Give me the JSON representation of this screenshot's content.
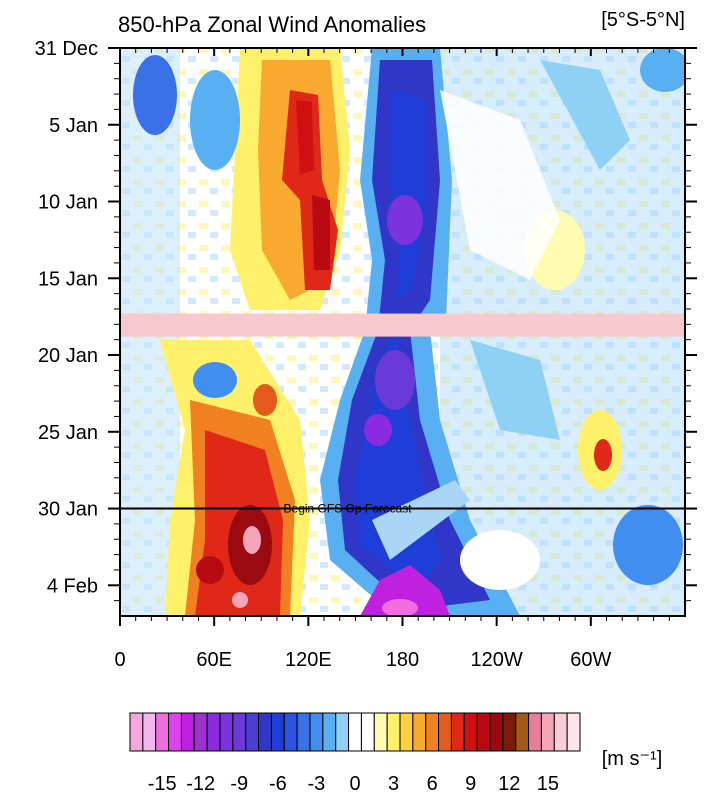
{
  "chart_data": {
    "type": "heatmap",
    "title": "850-hPa Zonal Wind Anomalies",
    "region": "[5°S-5°N]",
    "x_ticks": [
      "0",
      "60E",
      "120E",
      "180",
      "120W",
      "60W"
    ],
    "x_tick_lon": [
      0,
      60,
      120,
      180,
      240,
      300
    ],
    "xlim": [
      0,
      360
    ],
    "y_ticks": [
      "31 Dec",
      "5 Jan",
      "10 Jan",
      "15 Jan",
      "20 Jan",
      "25 Jan",
      "30 Jan",
      "4 Feb"
    ],
    "y_tick_day": [
      0,
      5,
      10,
      15,
      20,
      25,
      30,
      35
    ],
    "ylim": [
      0,
      37
    ],
    "units": "[m s⁻¹]",
    "missing_data_days": [
      17.3,
      18.8
    ],
    "forecast_start_day": 30,
    "forecast_label": "Begin GFS Op Forecast",
    "colorbar_labels": [
      "-15",
      "-12",
      "-9",
      "-6",
      "-3",
      "0",
      "3",
      "6",
      "9",
      "12",
      "15"
    ],
    "colorbar_values": [
      -15,
      -12,
      -9,
      -6,
      -3,
      0,
      3,
      6,
      9,
      12,
      15
    ],
    "color_levels": [
      -17,
      -16,
      -15,
      -14,
      -13,
      -12,
      -11,
      -10,
      -9,
      -8,
      -7,
      -6,
      -5,
      -4,
      -3,
      -2,
      -1,
      0,
      1,
      2,
      3,
      4,
      5,
      6,
      7,
      8,
      9,
      10,
      11,
      12,
      13,
      14,
      15,
      16,
      17
    ],
    "colors": [
      "#f7a6e0",
      "#f2b6ee",
      "#ef6fe3",
      "#e040f0",
      "#c020e0",
      "#a030d0",
      "#8a2be2",
      "#7a33dd",
      "#6a3ad8",
      "#4a3fd0",
      "#2f36c8",
      "#1f3ed8",
      "#2a55e0",
      "#3a70e8",
      "#3f8ef0",
      "#58b0f2",
      "#8fd0f5",
      "#ffffff",
      "#ffffff",
      "#fffbb0",
      "#fff06a",
      "#ffd040",
      "#f9a830",
      "#f08020",
      "#e45a1a",
      "#e02818",
      "#d01010",
      "#b80a10",
      "#9a0a10",
      "#7e1a0a",
      "#a05a1a",
      "#e67ca0",
      "#f5a5b5",
      "#f9cdd5",
      "#fde6ea"
    ],
    "anomaly_features": [
      {
        "lon": 160,
        "day": 20,
        "value": -9
      },
      {
        "lon": 165,
        "day": 10,
        "value": -8
      },
      {
        "lon": 180,
        "day": 35,
        "value": -14
      },
      {
        "lon": 80,
        "day": 8,
        "value": 8
      },
      {
        "lon": 85,
        "day": 32,
        "value": 10
      },
      {
        "lon": 65,
        "day": 26,
        "value": 7
      },
      {
        "lon": 300,
        "day": 28,
        "value": 5
      }
    ]
  }
}
